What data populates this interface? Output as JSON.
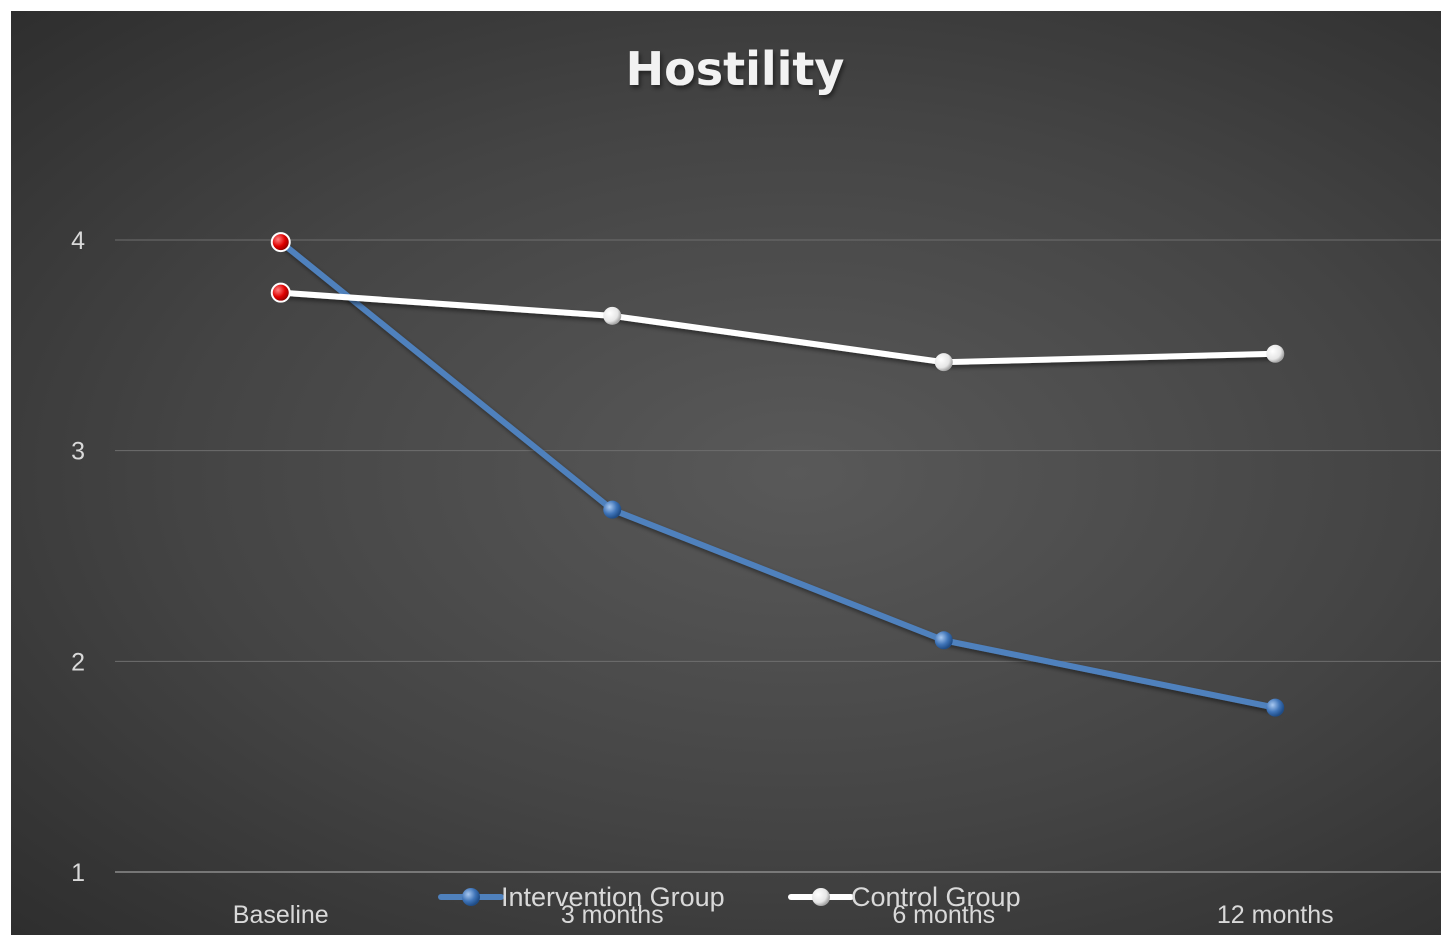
{
  "chart_data": {
    "type": "line",
    "title": "Hostility",
    "xlabel": "",
    "ylabel": "",
    "categories": [
      "Baseline",
      "3 months",
      "6 months",
      "12 months"
    ],
    "ylim": [
      1,
      4
    ],
    "yticks": [
      1,
      2,
      3,
      4
    ],
    "grid": true,
    "legend_position": "bottom",
    "series": [
      {
        "name": "Intervention Group",
        "values": [
          3.99,
          2.72,
          2.1,
          1.78
        ],
        "color": "#4f81bd",
        "first_marker_color": "#e00000"
      },
      {
        "name": "Control Group",
        "values": [
          3.75,
          3.64,
          3.42,
          3.46
        ],
        "color": "#ffffff",
        "first_marker_color": "#e00000"
      }
    ]
  }
}
